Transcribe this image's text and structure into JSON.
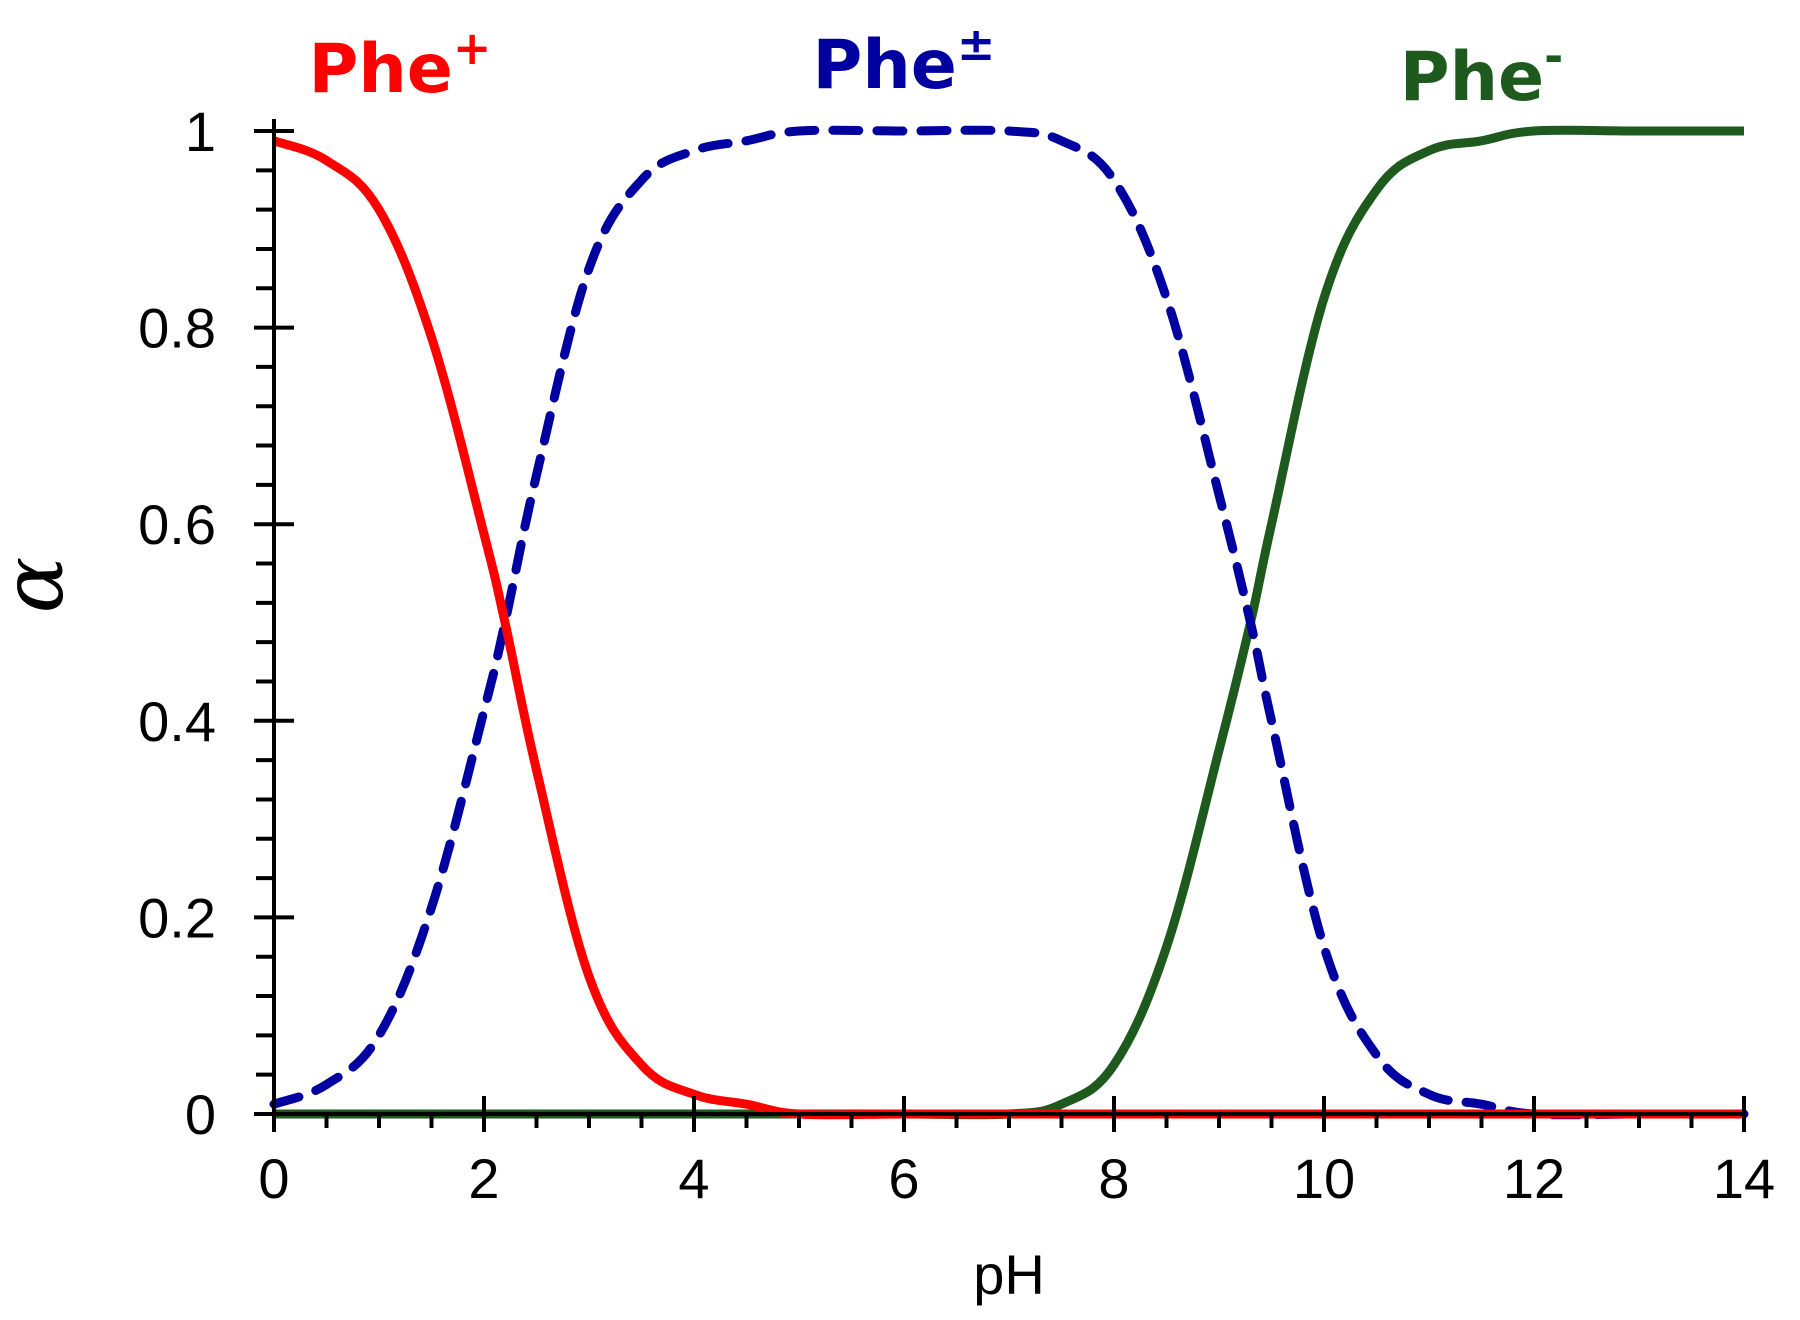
{
  "chart_data": {
    "type": "line",
    "xlabel": "pH",
    "ylabel": "α",
    "xlim": [
      0,
      14
    ],
    "ylim": [
      0,
      1
    ],
    "x_ticks": [
      "0",
      "2",
      "4",
      "6",
      "8",
      "10",
      "12",
      "14"
    ],
    "y_ticks": [
      "0",
      "0.2",
      "0.4",
      "0.6",
      "0.8",
      "1"
    ],
    "grid": false,
    "legend": "none",
    "x": [
      0,
      0.5,
      1,
      1.5,
      2,
      2.2,
      2.5,
      3,
      3.5,
      4,
      4.5,
      5,
      6,
      7,
      7.5,
      8,
      8.5,
      9,
      9.3,
      9.5,
      10,
      10.5,
      11,
      11.5,
      12,
      13,
      14
    ],
    "series": [
      {
        "name": "Phe⁺",
        "color": "#ff0000",
        "dash": "solid",
        "values": [
          0.99,
          0.97,
          0.92,
          0.79,
          0.59,
          0.5,
          0.35,
          0.14,
          0.05,
          0.02,
          0.01,
          0.0,
          0.0,
          0.0,
          0.0,
          0.0,
          0.0,
          0.0,
          0.0,
          0.0,
          0.0,
          0.0,
          0.0,
          0.0,
          0.0,
          0.0,
          0.0
        ]
      },
      {
        "name": "Phe±",
        "color": "#0000a0",
        "dash": "dashed",
        "values": [
          0.01,
          0.03,
          0.08,
          0.21,
          0.41,
          0.5,
          0.65,
          0.86,
          0.95,
          0.98,
          0.99,
          1.0,
          1.0,
          1.0,
          0.99,
          0.95,
          0.83,
          0.63,
          0.5,
          0.4,
          0.17,
          0.06,
          0.02,
          0.01,
          0.0,
          0.0,
          0.0
        ]
      },
      {
        "name": "Phe⁻",
        "color": "#1e5a1e",
        "dash": "solid",
        "values": [
          0.0,
          0.0,
          0.0,
          0.0,
          0.0,
          0.0,
          0.0,
          0.0,
          0.0,
          0.0,
          0.0,
          0.0,
          0.0,
          0.0,
          0.01,
          0.05,
          0.17,
          0.37,
          0.5,
          0.6,
          0.83,
          0.94,
          0.98,
          0.99,
          1.0,
          1.0,
          1.0
        ]
      }
    ],
    "annotations": [
      {
        "text": "Phe",
        "sup": "+",
        "color": "#ff0000",
        "x": 1.2
      },
      {
        "text": "Phe",
        "sup": "±",
        "color": "#0000a0",
        "x": 6.0
      },
      {
        "text": "Phe",
        "sup": "-",
        "color": "#1e5a1e",
        "x": 11.5
      }
    ]
  }
}
